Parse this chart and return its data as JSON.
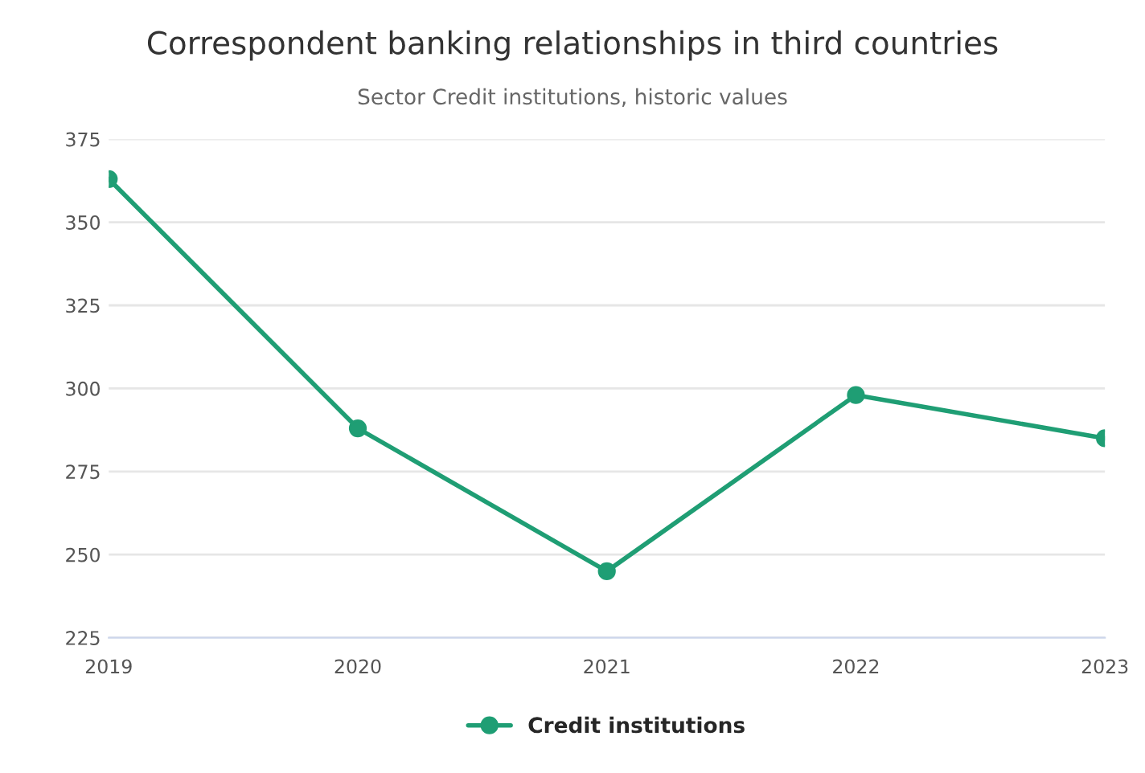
{
  "chart_data": {
    "type": "line",
    "title": "Correspondent banking relationships in third countries",
    "subtitle": "Sector Credit institutions, historic values",
    "categories": [
      "2019",
      "2020",
      "2021",
      "2022",
      "2023"
    ],
    "series": [
      {
        "name": "Credit institutions",
        "color": "#1f9e74",
        "values": [
          363,
          288,
          245,
          298,
          285
        ]
      }
    ],
    "ylim": [
      225,
      375
    ],
    "yticks": [
      225,
      250,
      275,
      300,
      325,
      350,
      375
    ],
    "grid": "y",
    "legend": "bottom",
    "marker": "circle",
    "line_style": "solid"
  }
}
